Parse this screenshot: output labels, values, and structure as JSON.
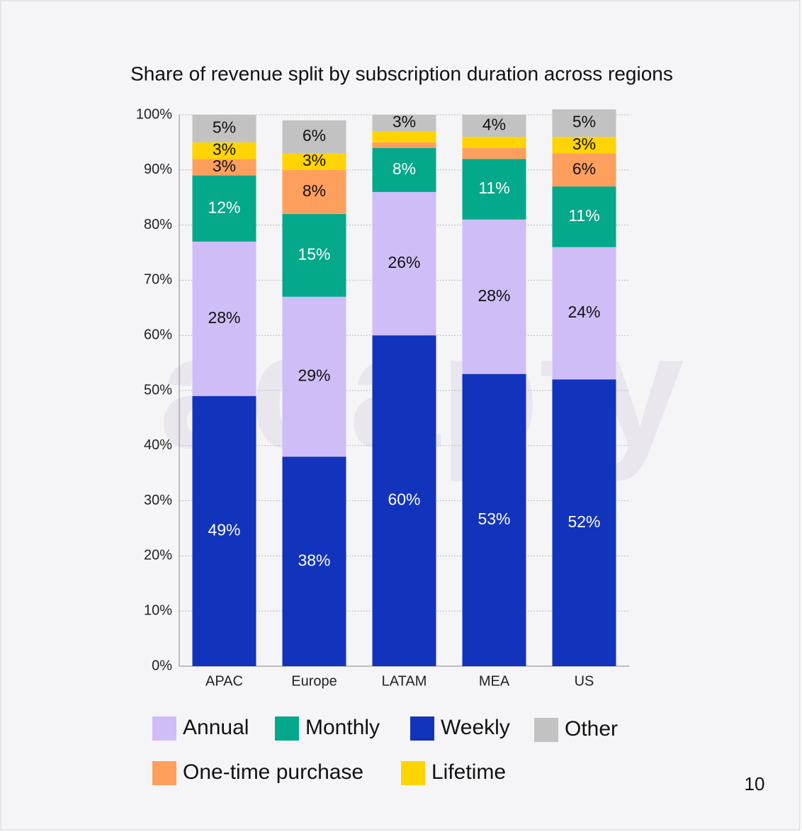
{
  "chart_data": {
    "type": "stacked_bar",
    "title": "Share of revenue split by subscription duration across regions",
    "categories": [
      "APAC",
      "Europe",
      "LATAM",
      "MEA",
      "US"
    ],
    "series": [
      {
        "name": "Weekly",
        "color": "#1233bb",
        "values": [
          49,
          38,
          60,
          53,
          52
        ],
        "value_labels": [
          "49%",
          "38%",
          "60%",
          "53%",
          "52%"
        ]
      },
      {
        "name": "Annual",
        "color": "#cfbdf7",
        "values": [
          28,
          29,
          26,
          28,
          24
        ],
        "value_labels": [
          "28%",
          "29%",
          "26%",
          "28%",
          "24%"
        ]
      },
      {
        "name": "Monthly",
        "color": "#04a88a",
        "values": [
          12,
          15,
          8,
          11,
          11
        ],
        "value_labels": [
          "12%",
          "15%",
          "8%",
          "11%",
          "11%"
        ]
      },
      {
        "name": "One-time purchase",
        "color": "#ff9f5e",
        "values": [
          3,
          8,
          1,
          2,
          6
        ],
        "value_labels": [
          "3%",
          "8%",
          null,
          null,
          "6%"
        ]
      },
      {
        "name": "Lifetime",
        "color": "#ffd400",
        "values": [
          3,
          3,
          2,
          2,
          3
        ],
        "value_labels": [
          "3%",
          "3%",
          null,
          null,
          "3%"
        ]
      },
      {
        "name": "Other",
        "color": "#c2c2c2",
        "values": [
          5,
          6,
          3,
          4,
          5
        ],
        "value_labels": [
          "5%",
          "6%",
          "3%",
          "4%",
          "5%"
        ]
      }
    ],
    "ylim": [
      0,
      100
    ],
    "yticks": [
      {
        "value": 0,
        "label": "0%"
      },
      {
        "value": 10,
        "label": "10%"
      },
      {
        "value": 20,
        "label": "20%"
      },
      {
        "value": 30,
        "label": "30%"
      },
      {
        "value": 40,
        "label": "40%"
      },
      {
        "value": 50,
        "label": "50%"
      },
      {
        "value": 60,
        "label": "60%"
      },
      {
        "value": 70,
        "label": "70%"
      },
      {
        "value": 80,
        "label": "80%"
      },
      {
        "value": 90,
        "label": "90%"
      },
      {
        "value": 100,
        "label": "100%"
      }
    ],
    "grid": true
  },
  "watermark": "adapty",
  "page_number": "10"
}
